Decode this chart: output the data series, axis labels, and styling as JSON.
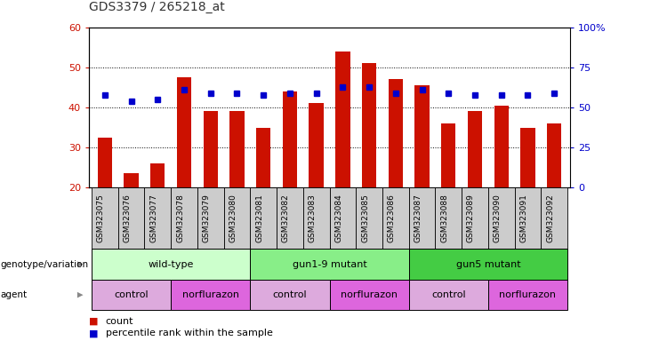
{
  "title": "GDS3379 / 265218_at",
  "samples": [
    "GSM323075",
    "GSM323076",
    "GSM323077",
    "GSM323078",
    "GSM323079",
    "GSM323080",
    "GSM323081",
    "GSM323082",
    "GSM323083",
    "GSM323084",
    "GSM323085",
    "GSM323086",
    "GSM323087",
    "GSM323088",
    "GSM323089",
    "GSM323090",
    "GSM323091",
    "GSM323092"
  ],
  "counts": [
    32.5,
    23.5,
    26.0,
    47.5,
    39.0,
    39.0,
    35.0,
    44.0,
    41.0,
    54.0,
    51.0,
    47.0,
    45.5,
    36.0,
    39.0,
    40.5,
    35.0,
    36.0
  ],
  "percentiles": [
    43.0,
    41.5,
    42.0,
    44.5,
    43.5,
    43.5,
    43.0,
    43.5,
    43.5,
    45.0,
    45.0,
    43.5,
    44.5,
    43.5,
    43.0,
    43.0,
    43.0,
    43.5
  ],
  "bar_color": "#cc1100",
  "dot_color": "#0000cc",
  "ylim_left": [
    20,
    60
  ],
  "ylim_right": [
    0,
    100
  ],
  "yticks_left": [
    20,
    30,
    40,
    50,
    60
  ],
  "yticks_right": [
    0,
    25,
    50,
    75,
    100
  ],
  "ytick_labels_right": [
    "0",
    "25",
    "50",
    "75",
    "100%"
  ],
  "grid_values": [
    30,
    40,
    50
  ],
  "groups_genotype": [
    {
      "label": "wild-type",
      "start": 0,
      "end": 5,
      "color": "#ccffcc"
    },
    {
      "label": "gun1-9 mutant",
      "start": 6,
      "end": 11,
      "color": "#88ee88"
    },
    {
      "label": "gun5 mutant",
      "start": 12,
      "end": 17,
      "color": "#44cc44"
    }
  ],
  "groups_agent": [
    {
      "label": "control",
      "start": 0,
      "end": 2,
      "color": "#ddaadd"
    },
    {
      "label": "norflurazon",
      "start": 3,
      "end": 5,
      "color": "#dd66dd"
    },
    {
      "label": "control",
      "start": 6,
      "end": 8,
      "color": "#ddaadd"
    },
    {
      "label": "norflurazon",
      "start": 9,
      "end": 11,
      "color": "#dd66dd"
    },
    {
      "label": "control",
      "start": 12,
      "end": 14,
      "color": "#ddaadd"
    },
    {
      "label": "norflurazon",
      "start": 15,
      "end": 17,
      "color": "#dd66dd"
    }
  ],
  "title_color": "#333333",
  "left_tick_color": "#cc1100",
  "right_tick_color": "#0000cc",
  "bar_width": 0.55,
  "sample_cell_color": "#cccccc",
  "label_arrow_color": "#888888"
}
